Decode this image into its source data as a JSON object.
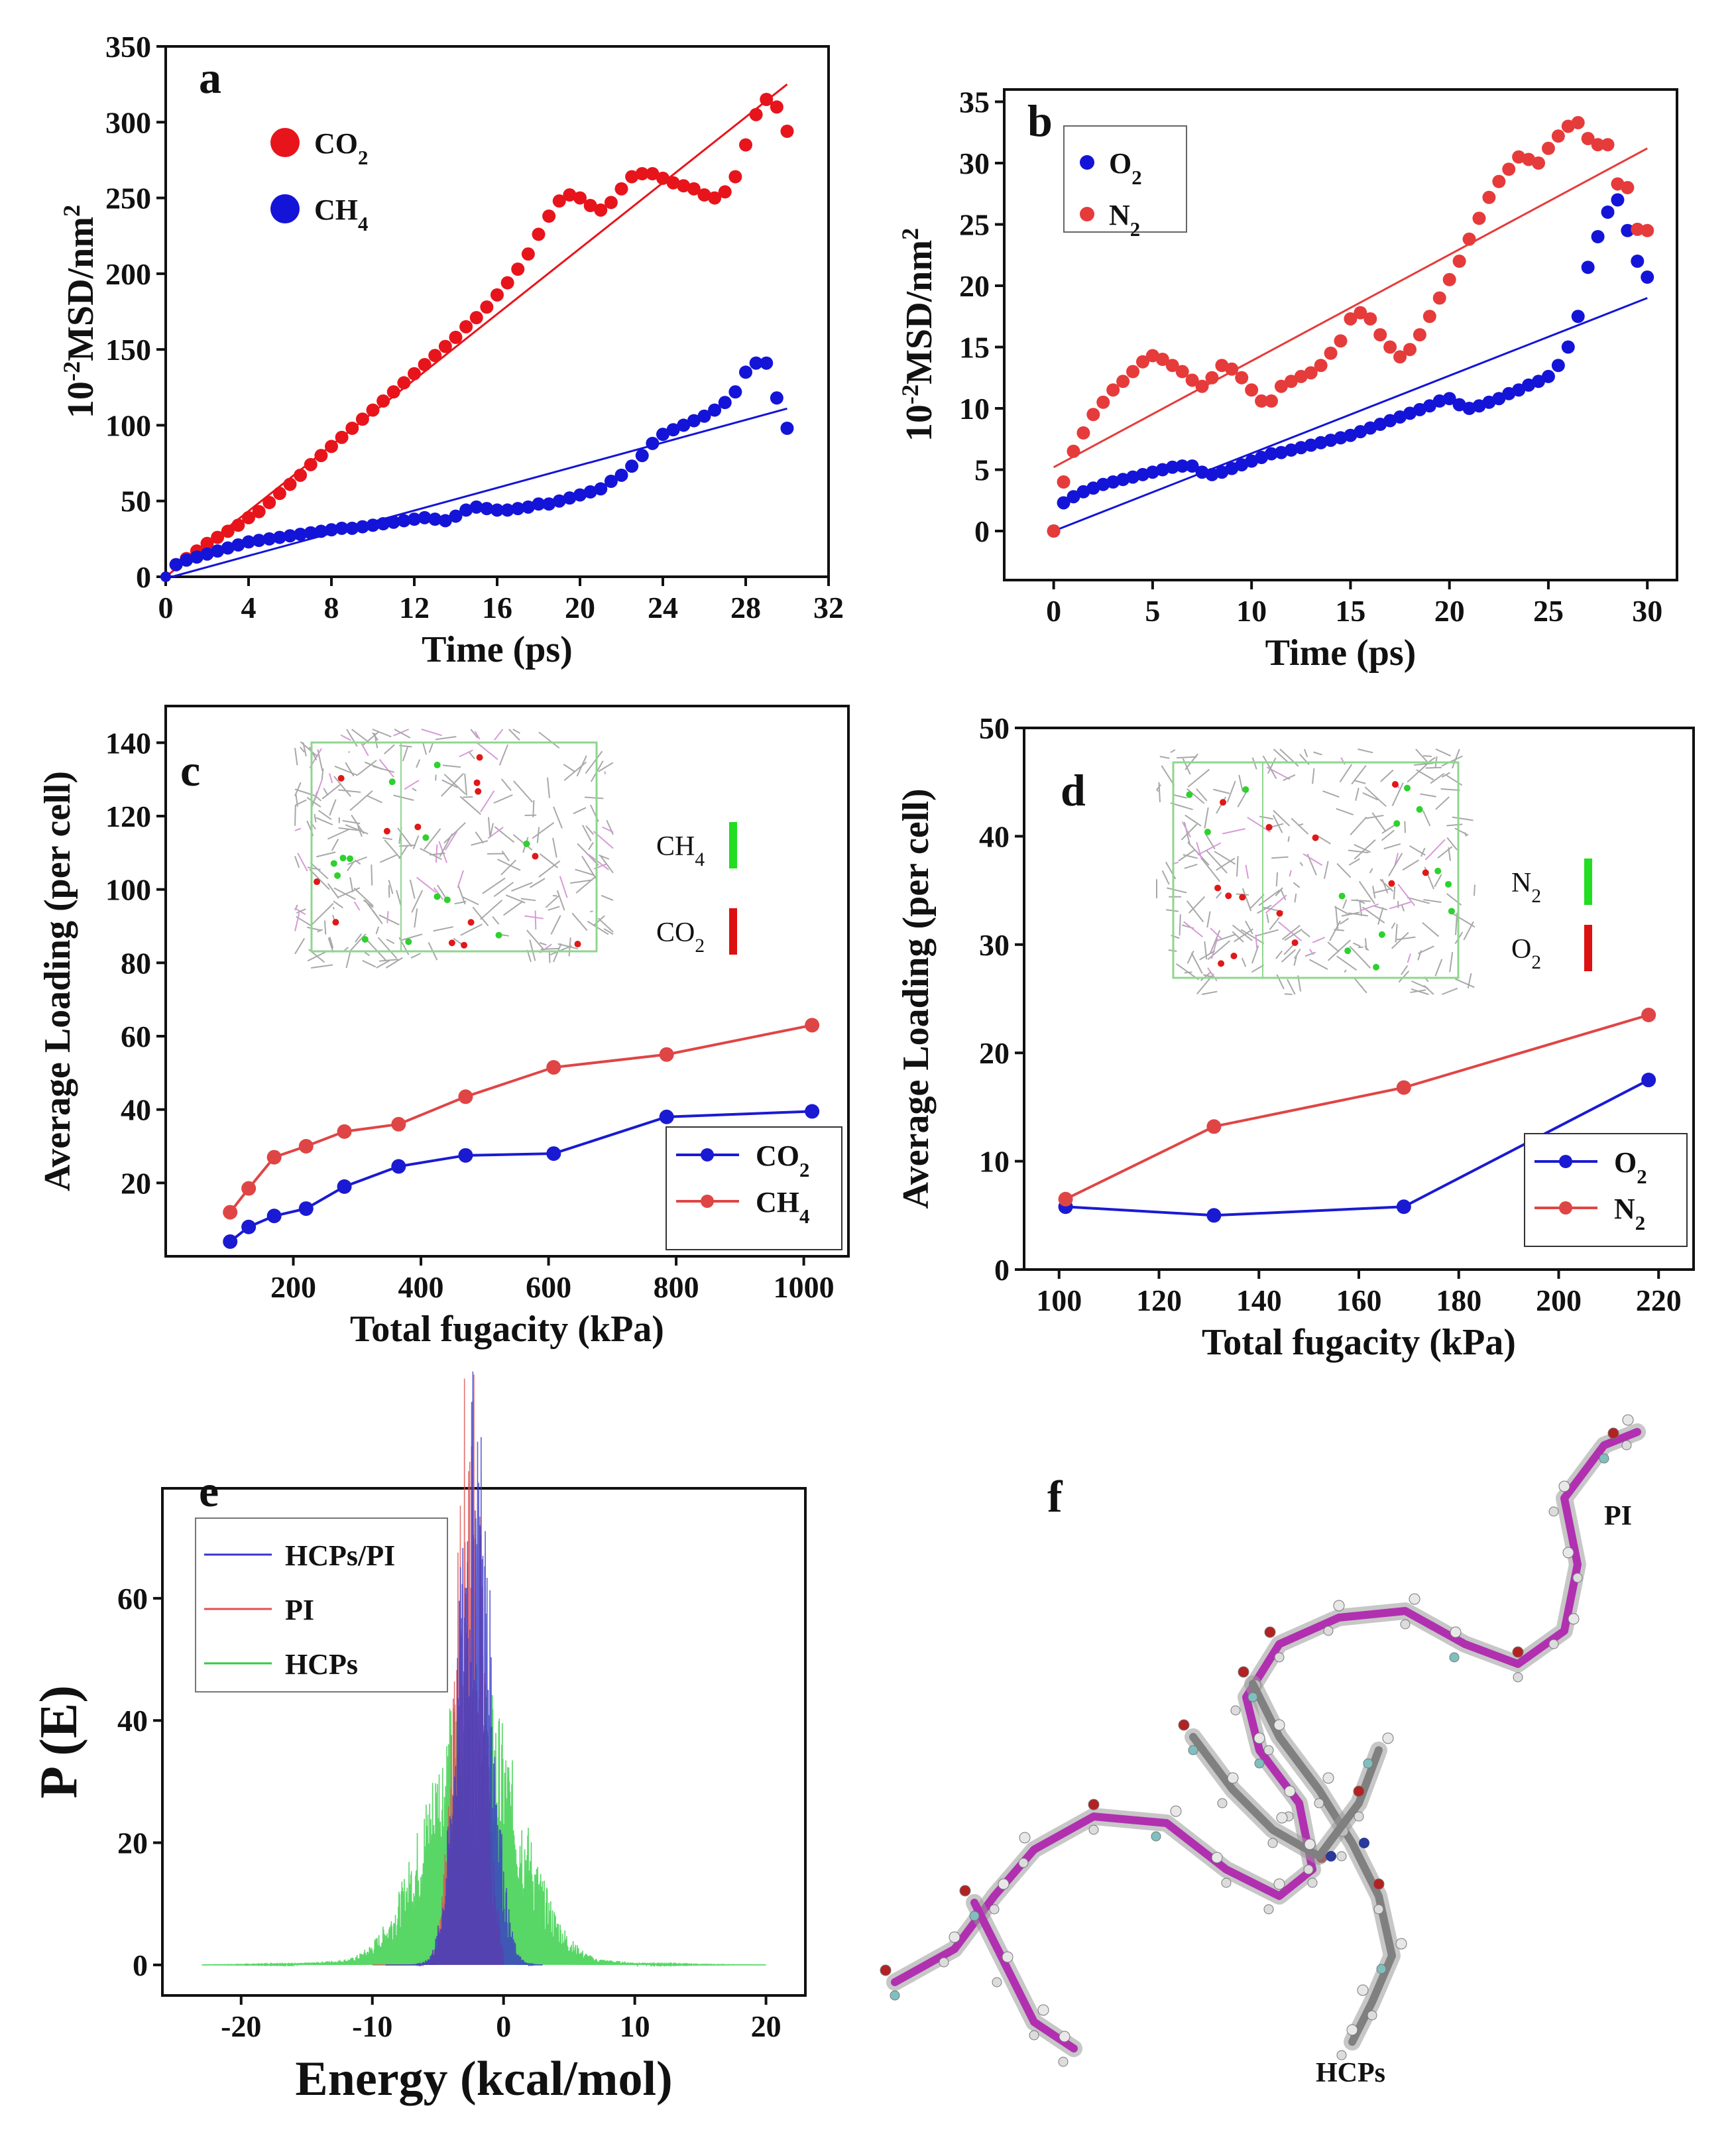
{
  "chart_data": [
    {
      "id": "a",
      "type": "scatter",
      "panel_label": "a",
      "xlabel": "Time (ps)",
      "ylabel_main": "MSD/nm",
      "ylabel_prefix": "10",
      "ylabel_exp": "-2",
      "ylabel_sq": "2",
      "xlim": [
        0,
        32
      ],
      "ylim": [
        0,
        350
      ],
      "xticks": [
        0,
        4,
        8,
        12,
        16,
        20,
        24,
        28,
        32
      ],
      "yticks": [
        0,
        50,
        100,
        150,
        200,
        250,
        300,
        350
      ],
      "series": [
        {
          "name": "CO",
          "sub": "2",
          "color": "#e8141b",
          "x": [
            0,
            0.5,
            1,
            1.5,
            2,
            2.5,
            3,
            3.5,
            4,
            4.5,
            5,
            5.5,
            6,
            6.5,
            7,
            7.5,
            8,
            8.5,
            9,
            9.5,
            10,
            10.5,
            11,
            11.5,
            12,
            12.5,
            13,
            13.5,
            14,
            14.5,
            15,
            15.5,
            16,
            16.5,
            17,
            17.5,
            18,
            18.5,
            19,
            19.5,
            20,
            20.5,
            21,
            21.5,
            22,
            22.5,
            23,
            23.5,
            24,
            24.5,
            25,
            25.5,
            26,
            26.5,
            27,
            27.5,
            28,
            28.5,
            29,
            29.5,
            30
          ],
          "y": [
            0,
            8,
            12,
            17,
            22,
            26,
            30,
            34,
            39,
            43,
            49,
            55,
            61,
            67,
            74,
            80,
            86,
            92,
            98,
            104,
            110,
            116,
            122,
            128,
            134,
            140,
            146,
            152,
            158,
            165,
            171,
            178,
            186,
            194,
            203,
            213,
            226,
            238,
            248,
            252,
            250,
            245,
            242,
            247,
            256,
            264,
            266,
            266,
            263,
            260,
            258,
            256,
            252,
            250,
            254,
            264,
            285,
            305,
            315,
            310,
            294
          ],
          "fit": {
            "x0": 0,
            "y0": 0,
            "x1": 30,
            "y1": 325
          }
        },
        {
          "name": "CH",
          "sub": "4",
          "color": "#1414d8",
          "x": [
            0,
            0.5,
            1,
            1.5,
            2,
            2.5,
            3,
            3.5,
            4,
            4.5,
            5,
            5.5,
            6,
            6.5,
            7,
            7.5,
            8,
            8.5,
            9,
            9.5,
            10,
            10.5,
            11,
            11.5,
            12,
            12.5,
            13,
            13.5,
            14,
            14.5,
            15,
            15.5,
            16,
            16.5,
            17,
            17.5,
            18,
            18.5,
            19,
            19.5,
            20,
            20.5,
            21,
            21.5,
            22,
            22.5,
            23,
            23.5,
            24,
            24.5,
            25,
            25.5,
            26,
            26.5,
            27,
            27.5,
            28,
            28.5,
            29,
            29.5,
            30
          ],
          "y": [
            0,
            8,
            11,
            13,
            15,
            17,
            19,
            21,
            23,
            24,
            25,
            26,
            27,
            28,
            29,
            30,
            31,
            32,
            32,
            33,
            34,
            35,
            36,
            37,
            38,
            39,
            38,
            37,
            40,
            44,
            46,
            45,
            44,
            44,
            45,
            46,
            48,
            48,
            50,
            52,
            54,
            56,
            58,
            63,
            67,
            73,
            80,
            88,
            94,
            97,
            100,
            103,
            106,
            110,
            115,
            122,
            135,
            141,
            141,
            118,
            98
          ],
          "fit": {
            "x0": 0.3,
            "y0": 0,
            "x1": 30,
            "y1": 111
          }
        }
      ]
    },
    {
      "id": "b",
      "type": "scatter",
      "panel_label": "b",
      "xlabel": "Time (ps)",
      "ylabel_main": "MSD/nm",
      "ylabel_prefix": "10",
      "ylabel_exp": "-2",
      "ylabel_sq": "2",
      "xlim": [
        -2.5,
        31.5
      ],
      "ylim": [
        -4,
        36
      ],
      "xticks": [
        0,
        5,
        10,
        15,
        20,
        25,
        30
      ],
      "yticks": [
        0,
        5,
        10,
        15,
        20,
        25,
        30,
        35
      ],
      "series": [
        {
          "name": "O",
          "sub": "2",
          "color": "#1414d8",
          "x": [
            0,
            0.5,
            1,
            1.5,
            2,
            2.5,
            3,
            3.5,
            4,
            4.5,
            5,
            5.5,
            6,
            6.5,
            7,
            7.5,
            8,
            8.5,
            9,
            9.5,
            10,
            10.5,
            11,
            11.5,
            12,
            12.5,
            13,
            13.5,
            14,
            14.5,
            15,
            15.5,
            16,
            16.5,
            17,
            17.5,
            18,
            18.5,
            19,
            19.5,
            20,
            20.5,
            21,
            21.5,
            22,
            22.5,
            23,
            23.5,
            24,
            24.5,
            25,
            25.5,
            26,
            26.5,
            27,
            27.5,
            28,
            28.5,
            29,
            29.5,
            30
          ],
          "y": [
            0,
            2.3,
            2.8,
            3.2,
            3.5,
            3.8,
            4.0,
            4.2,
            4.4,
            4.6,
            4.8,
            5.0,
            5.2,
            5.3,
            5.3,
            4.8,
            4.6,
            4.8,
            5.1,
            5.4,
            5.7,
            6.0,
            6.3,
            6.4,
            6.6,
            6.8,
            7.0,
            7.2,
            7.4,
            7.6,
            7.8,
            8.1,
            8.4,
            8.7,
            9.0,
            9.3,
            9.6,
            9.9,
            10.2,
            10.6,
            10.8,
            10.3,
            10.0,
            10.2,
            10.5,
            10.8,
            11.2,
            11.5,
            11.9,
            12.2,
            12.6,
            13.5,
            15.0,
            17.5,
            21.5,
            24.0,
            26.0,
            27.0,
            24.5,
            22.0,
            20.7
          ],
          "fit": {
            "x0": 0,
            "y0": 0,
            "x1": 30,
            "y1": 19
          }
        },
        {
          "name": "N",
          "sub": "2",
          "color": "#e63b3b",
          "x": [
            0,
            0.5,
            1,
            1.5,
            2,
            2.5,
            3,
            3.5,
            4,
            4.5,
            5,
            5.5,
            6,
            6.5,
            7,
            7.5,
            8,
            8.5,
            9,
            9.5,
            10,
            10.5,
            11,
            11.5,
            12,
            12.5,
            13,
            13.5,
            14,
            14.5,
            15,
            15.5,
            16,
            16.5,
            17,
            17.5,
            18,
            18.5,
            19,
            19.5,
            20,
            20.5,
            21,
            21.5,
            22,
            22.5,
            23,
            23.5,
            24,
            24.5,
            25,
            25.5,
            26,
            26.5,
            27,
            27.5,
            28,
            28.5,
            29,
            29.5,
            30
          ],
          "y": [
            0,
            4.0,
            6.5,
            8.0,
            9.5,
            10.5,
            11.5,
            12.2,
            13.0,
            13.8,
            14.3,
            14.0,
            13.5,
            13.0,
            12.3,
            11.8,
            12.5,
            13.5,
            13.2,
            12.5,
            11.5,
            10.6,
            10.6,
            11.8,
            12.2,
            12.6,
            12.9,
            13.5,
            14.5,
            15.5,
            17.3,
            17.8,
            17.3,
            16.0,
            15.0,
            14.2,
            14.8,
            16.0,
            17.5,
            19.0,
            20.5,
            22.0,
            23.8,
            25.5,
            27.2,
            28.5,
            29.5,
            30.5,
            30.3,
            30.0,
            31.2,
            32.2,
            33.0,
            33.3,
            32.0,
            31.5,
            31.5,
            28.3,
            28.0,
            24.6,
            24.5
          ],
          "fit": {
            "x0": 0,
            "y0": 5.2,
            "x1": 30,
            "y1": 31.2
          }
        }
      ]
    },
    {
      "id": "c",
      "type": "line",
      "panel_label": "c",
      "xlabel": "Total fugacity (kPa)",
      "ylabel": "Average Loading (per cell)",
      "xlim": [
        0,
        1070
      ],
      "ylim": [
        0,
        150
      ],
      "xticks": [
        200,
        400,
        600,
        800,
        1000
      ],
      "yticks": [
        20,
        40,
        60,
        80,
        100,
        120,
        140
      ],
      "series": [
        {
          "name": "CO",
          "sub": "2",
          "color": "#1a1ad2",
          "x": [
            101,
            130,
            170,
            220,
            280,
            365,
            470,
            608,
            785,
            1013
          ],
          "y": [
            4,
            8,
            11,
            13,
            19,
            24.5,
            27.5,
            28,
            38,
            39.5
          ]
        },
        {
          "name": "CH",
          "sub": "4",
          "color": "#e04545",
          "x": [
            101,
            130,
            170,
            220,
            280,
            365,
            470,
            608,
            785,
            1013
          ],
          "y": [
            12,
            18.5,
            27,
            30,
            34,
            36,
            43.5,
            51.5,
            55,
            63
          ]
        }
      ],
      "inset_legend": [
        {
          "name": "CH",
          "sub": "4"
        },
        {
          "name": "CO",
          "sub": "2"
        }
      ]
    },
    {
      "id": "d",
      "type": "line",
      "panel_label": "d",
      "xlabel": "Total fugacity (kPa)",
      "ylabel": "Average Loading (per cell)",
      "xlim": [
        93,
        227
      ],
      "ylim": [
        0,
        50
      ],
      "xticks": [
        100,
        120,
        140,
        160,
        180,
        200,
        220
      ],
      "yticks": [
        0,
        10,
        20,
        30,
        40,
        50
      ],
      "series": [
        {
          "name": "O",
          "sub": "2",
          "color": "#1a1ad2",
          "x": [
            101.3,
            131,
            169,
            218
          ],
          "y": [
            5.8,
            5.0,
            5.8,
            17.5
          ]
        },
        {
          "name": "N",
          "sub": "2",
          "color": "#e04545",
          "x": [
            101.3,
            131,
            169,
            218
          ],
          "y": [
            6.5,
            13.2,
            16.8,
            23.5
          ]
        }
      ],
      "inset_legend": [
        {
          "name": "N",
          "sub": "2"
        },
        {
          "name": "O",
          "sub": "2"
        }
      ]
    },
    {
      "id": "e",
      "type": "line",
      "panel_label": "e",
      "xlabel": "Energy (kcal/mol)",
      "ylabel": "P (E)",
      "xlim": [
        -26,
        23
      ],
      "ylim": [
        -5,
        78
      ],
      "xticks": [
        -20,
        -10,
        0,
        10,
        20
      ],
      "yticks": [
        0,
        20,
        40,
        60
      ],
      "series": [
        {
          "name": "HCPs/PI",
          "color": "#3838c8",
          "center": -2.2,
          "peak": 68,
          "width": 1.2,
          "range": [
            -9,
            3
          ]
        },
        {
          "name": "PI",
          "color": "#e05050",
          "center": -2.6,
          "peak": 72,
          "width": 1.0,
          "range": [
            -10,
            0
          ]
        },
        {
          "name": "HCPs",
          "color": "#2ecc40",
          "center": -2.3,
          "peak": 34,
          "width": 3.4,
          "range": [
            -23,
            20
          ]
        }
      ]
    }
  ],
  "figure_f": {
    "panel_label": "f",
    "labels": [
      "PI",
      "HCPs"
    ]
  }
}
